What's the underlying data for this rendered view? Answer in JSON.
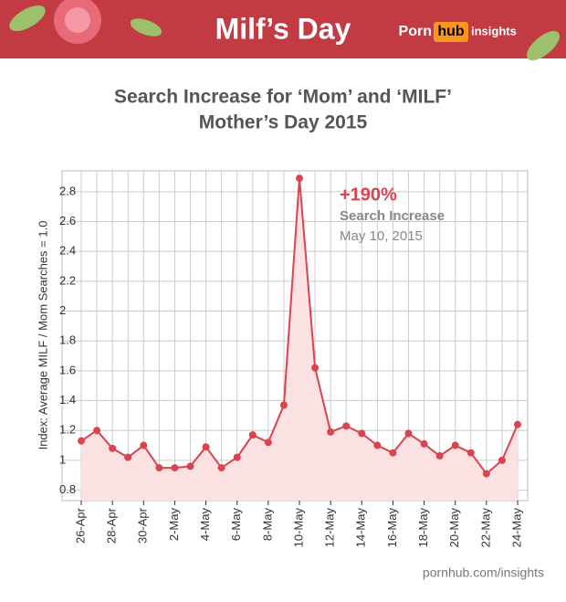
{
  "header": {
    "title": "Milf’s Day",
    "brand_left": "Porn",
    "brand_box": "hub",
    "brand_right": "insights"
  },
  "chart_data": {
    "type": "line",
    "title": "Search Increase for ‘Mom’ and ‘MILF’",
    "subtitle": "Mother’s Day 2015",
    "y_label": "Index: Average MILF / Mom Searches = 1.0",
    "categories": [
      "26-Apr",
      null,
      "28-Apr",
      null,
      "30-Apr",
      null,
      "2-May",
      null,
      "4-May",
      null,
      "6-May",
      null,
      "8-May",
      null,
      "10-May",
      null,
      "12-May",
      null,
      "14-May",
      null,
      "16-May",
      null,
      "18-May",
      null,
      "20-May",
      null,
      "22-May",
      null,
      "24-May"
    ],
    "series": [
      {
        "name": "Index",
        "color": "#d9444f",
        "values": [
          1.13,
          1.2,
          1.08,
          1.02,
          1.1,
          0.95,
          0.95,
          0.96,
          1.09,
          0.95,
          1.02,
          1.17,
          1.12,
          1.37,
          2.89,
          1.62,
          1.19,
          1.23,
          1.18,
          1.1,
          1.05,
          1.18,
          1.11,
          1.03,
          1.1,
          1.05,
          0.91,
          1.0,
          1.24
        ]
      }
    ],
    "fill_color": "#fbe1e1",
    "ylim": [
      0.73,
      2.94
    ],
    "yticks": [
      0.8,
      1,
      1.2,
      1.4,
      1.6,
      1.8,
      2,
      2.2,
      2.4,
      2.6,
      2.8
    ],
    "grid": true,
    "annotations": [
      "+190%",
      "Search Increase",
      "May 10, 2015"
    ]
  },
  "footer": "pornhub.com/insights"
}
